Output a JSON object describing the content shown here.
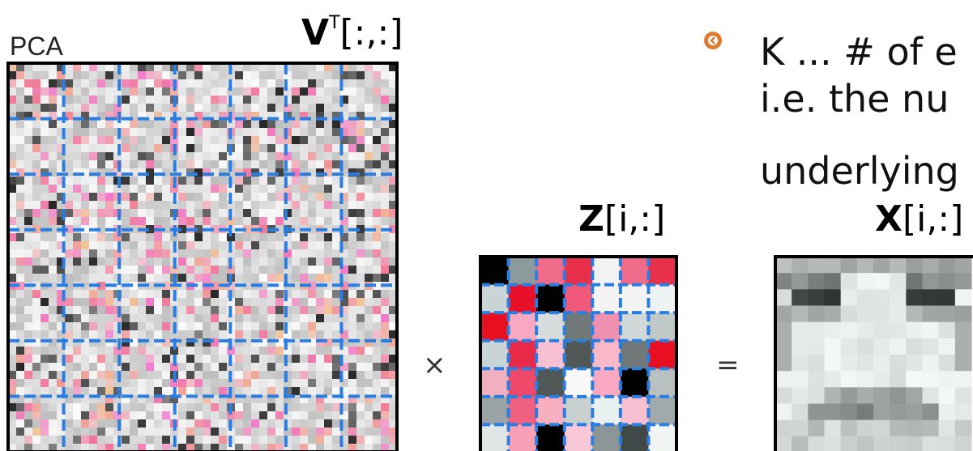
{
  "left_panel": {
    "label": "PCA",
    "matrix_label": {
      "symbol": "V",
      "superscript": "T",
      "index": "[:,:]"
    }
  },
  "operators": {
    "times": "×",
    "equals": "="
  },
  "middle_panel": {
    "symbol": "Z",
    "index": "[i,:]"
  },
  "right_panel": {
    "symbol": "X",
    "index": "[i,:]"
  },
  "bullet": {
    "lines": [
      "K ... # of e",
      "i.e. the nu",
      "underlying"
    ]
  }
}
